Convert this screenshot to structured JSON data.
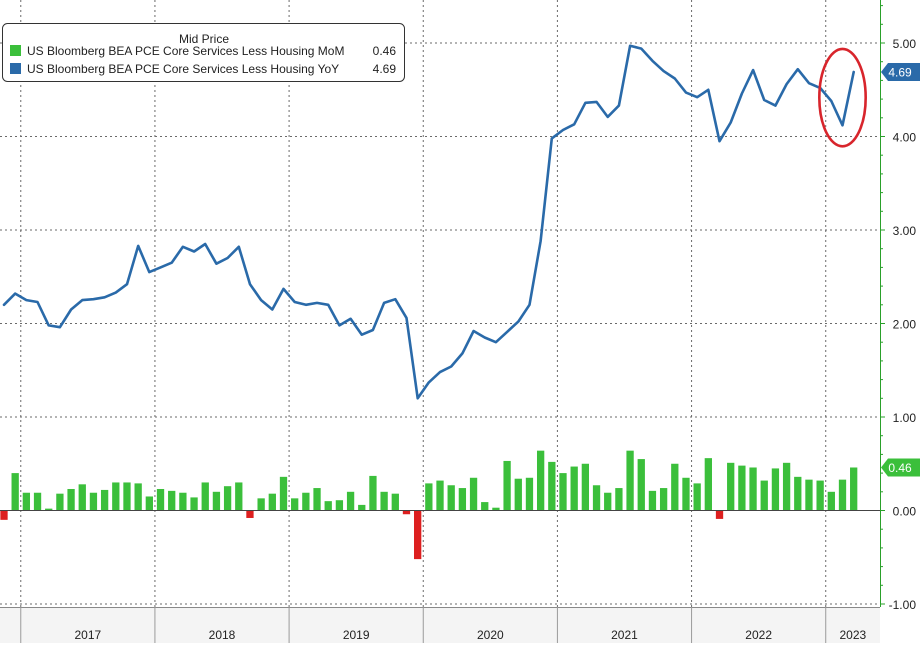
{
  "chart_data": {
    "type": "bar+line",
    "legend": {
      "title": "Mid Price",
      "placement": "top-left",
      "entries": [
        {
          "label": "US Bloomberg BEA PCE Core Services Less Housing MoM",
          "value": "0.46",
          "color": "#3bbf3b"
        },
        {
          "label": "US Bloomberg BEA PCE Core Services Less Housing YoY",
          "value": "4.69",
          "color": "#2a6aa9"
        }
      ]
    },
    "x_start": "2016-11",
    "x_end": "2023-06",
    "x_ticks": [
      "2017",
      "2018",
      "2019",
      "2020",
      "2021",
      "2022",
      "2023"
    ],
    "y_ticks": [
      "5.00",
      "4.00",
      "3.00",
      "2.00",
      "1.00",
      "0.00",
      "-1.00"
    ],
    "ylim": [
      -1.0,
      5.4
    ],
    "grid": true,
    "series": [
      {
        "name": "US Bloomberg BEA PCE Core Services Less Housing YoY",
        "type": "line",
        "color": "#2a6aa9",
        "values": [
          2.2,
          2.32,
          2.25,
          2.23,
          1.98,
          1.96,
          2.15,
          2.25,
          2.26,
          2.28,
          2.33,
          2.42,
          2.83,
          2.55,
          2.6,
          2.65,
          2.82,
          2.77,
          2.85,
          2.64,
          2.7,
          2.82,
          2.42,
          2.25,
          2.15,
          2.37,
          2.23,
          2.2,
          2.22,
          2.2,
          1.98,
          2.05,
          1.88,
          1.93,
          2.22,
          2.26,
          2.06,
          1.2,
          1.37,
          1.48,
          1.54,
          1.68,
          1.92,
          1.85,
          1.8,
          1.91,
          2.02,
          2.2,
          2.88,
          3.98,
          4.07,
          4.13,
          4.36,
          4.37,
          4.21,
          4.33,
          4.97,
          4.94,
          4.81,
          4.7,
          4.62,
          4.47,
          4.42,
          4.5,
          3.95,
          4.15,
          4.46,
          4.71,
          4.39,
          4.33,
          4.56,
          4.72,
          4.57,
          4.52,
          4.38,
          4.12,
          4.69
        ]
      },
      {
        "name": "US Bloomberg BEA PCE Core Services Less Housing MoM",
        "type": "bar",
        "color": "#3bbf3b",
        "negative_color": "#dd1f1f",
        "values": [
          -0.1,
          0.4,
          0.19,
          0.19,
          0.02,
          0.18,
          0.23,
          0.28,
          0.19,
          0.22,
          0.3,
          0.3,
          0.29,
          0.15,
          0.23,
          0.21,
          0.19,
          0.14,
          0.3,
          0.2,
          0.26,
          0.3,
          -0.08,
          0.13,
          0.18,
          0.36,
          0.13,
          0.19,
          0.24,
          0.1,
          0.11,
          0.2,
          0.06,
          0.37,
          0.2,
          0.18,
          -0.04,
          -0.52,
          0.29,
          0.32,
          0.27,
          0.24,
          0.35,
          0.09,
          0.03,
          0.53,
          0.34,
          0.35,
          0.64,
          0.52,
          0.4,
          0.47,
          0.5,
          0.27,
          0.19,
          0.24,
          0.64,
          0.55,
          0.21,
          0.24,
          0.5,
          0.35,
          0.29,
          0.56,
          -0.09,
          0.51,
          0.48,
          0.46,
          0.32,
          0.45,
          0.51,
          0.36,
          0.33,
          0.32,
          0.2,
          0.33,
          0.46
        ]
      }
    ],
    "last_value_labels": [
      {
        "text": "4.69",
        "value": 4.69,
        "color": "#2a6aa9"
      },
      {
        "text": "0.46",
        "value": 0.46,
        "color": "#3bbf3b"
      }
    ],
    "annotation": {
      "shape": "ellipse",
      "color": "#d8252c",
      "around": "YoY",
      "from_index": 74,
      "to_index": 76
    }
  }
}
